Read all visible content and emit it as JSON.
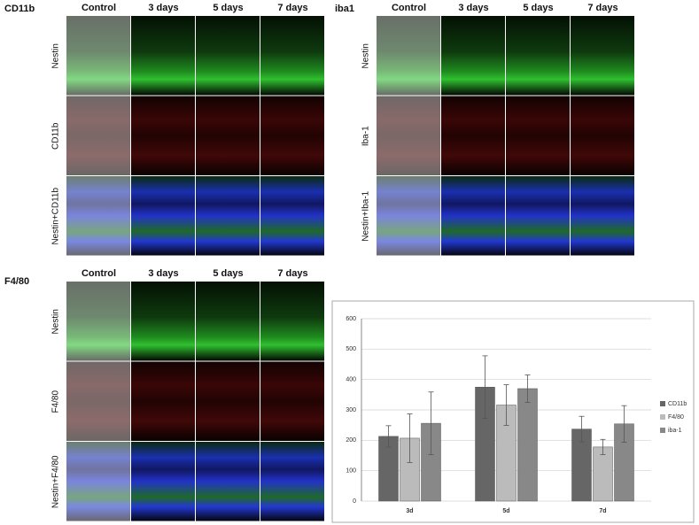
{
  "panels": [
    {
      "label": "CD11b",
      "columns": [
        "Control",
        "3 days",
        "5 days",
        "7 days"
      ],
      "rows": [
        "Nestin",
        "CD11b",
        "Nestin+CD11b"
      ]
    },
    {
      "label": "iba1",
      "columns": [
        "Control",
        "3 days",
        "5 days",
        "7 days"
      ],
      "rows": [
        "Nestin",
        "Iba-1",
        "Nestin+Iba-1"
      ]
    },
    {
      "label": "F4/80",
      "columns": [
        "Control",
        "3 days",
        "5 days",
        "7 days"
      ],
      "rows": [
        "Nestin",
        "F4/80",
        "Nestin+F4/80"
      ]
    }
  ],
  "chart_data": {
    "type": "bar",
    "categories": [
      "3d",
      "5d",
      "7d"
    ],
    "series": [
      {
        "name": "CD11b",
        "color": "#666666",
        "values": [
          213,
          375,
          237
        ],
        "errors": [
          35,
          103,
          42
        ]
      },
      {
        "name": "F4/80",
        "color": "#bbbbbb",
        "values": [
          207,
          316,
          178
        ],
        "errors": [
          80,
          67,
          25
        ]
      },
      {
        "name": "iba-1",
        "color": "#888888",
        "values": [
          256,
          370,
          254
        ],
        "errors": [
          103,
          45,
          60
        ]
      }
    ],
    "ylim": [
      0,
      600
    ],
    "yticks": [
      0,
      100,
      200,
      300,
      400,
      500,
      600
    ],
    "grid": true,
    "legend": "right"
  }
}
